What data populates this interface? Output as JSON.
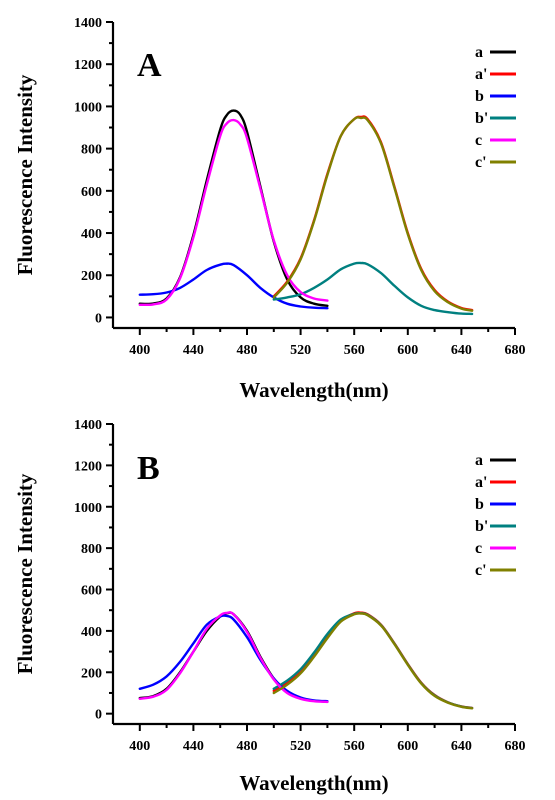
{
  "chart_data": [
    {
      "type": "line",
      "panel_label": "A",
      "xlabel": "Wavelength(nm)",
      "ylabel": "Fluorescence Intensity",
      "xlim": [
        380,
        680
      ],
      "ylim": [
        -50,
        1400
      ],
      "xticks": [
        400,
        440,
        480,
        520,
        560,
        600,
        640,
        680
      ],
      "yticks": [
        0,
        200,
        400,
        600,
        800,
        1000,
        1200,
        1400
      ],
      "legend": "top-right",
      "series": [
        {
          "name": "a",
          "color": "#000000",
          "x": [
            400,
            410,
            420,
            430,
            440,
            450,
            460,
            465,
            470,
            475,
            480,
            490,
            500,
            510,
            520,
            530,
            540
          ],
          "y": [
            65,
            66,
            90,
            190,
            390,
            650,
            890,
            960,
            980,
            960,
            880,
            620,
            360,
            180,
            95,
            65,
            55
          ]
        },
        {
          "name": "a'",
          "color": "#ff0000",
          "x": [
            500,
            510,
            520,
            530,
            540,
            550,
            560,
            565,
            570,
            580,
            590,
            600,
            610,
            620,
            630,
            640,
            648
          ],
          "y": [
            100,
            170,
            280,
            460,
            680,
            860,
            940,
            950,
            940,
            830,
            620,
            400,
            230,
            130,
            75,
            45,
            35
          ]
        },
        {
          "name": "b",
          "color": "#0000ff",
          "x": [
            400,
            410,
            420,
            430,
            440,
            450,
            460,
            465,
            470,
            480,
            490,
            500,
            510,
            520,
            530,
            540
          ],
          "y": [
            108,
            110,
            118,
            140,
            180,
            225,
            250,
            255,
            248,
            200,
            140,
            95,
            65,
            52,
            46,
            44
          ]
        },
        {
          "name": "b'",
          "color": "#008080",
          "x": [
            500,
            510,
            520,
            530,
            540,
            550,
            560,
            565,
            570,
            580,
            590,
            600,
            610,
            620,
            630,
            640,
            648
          ],
          "y": [
            85,
            95,
            110,
            140,
            180,
            228,
            255,
            258,
            252,
            210,
            150,
            95,
            55,
            35,
            25,
            18,
            17
          ]
        },
        {
          "name": "c",
          "color": "#ff00ff",
          "x": [
            400,
            410,
            420,
            430,
            440,
            450,
            460,
            465,
            470,
            475,
            480,
            490,
            500,
            510,
            520,
            530,
            540
          ],
          "y": [
            60,
            62,
            85,
            185,
            380,
            630,
            860,
            920,
            935,
            915,
            850,
            610,
            365,
            200,
            120,
            90,
            80
          ]
        },
        {
          "name": "c'",
          "color": "#808000",
          "x": [
            500,
            510,
            520,
            530,
            540,
            550,
            560,
            565,
            570,
            580,
            590,
            600,
            610,
            620,
            630,
            640,
            648
          ],
          "y": [
            95,
            165,
            275,
            455,
            675,
            860,
            940,
            945,
            935,
            825,
            615,
            395,
            225,
            125,
            72,
            42,
            32
          ]
        }
      ]
    },
    {
      "type": "line",
      "panel_label": "B",
      "xlabel": "Wavelength(nm)",
      "ylabel": "Fluorescence Intensity",
      "xlim": [
        380,
        680
      ],
      "ylim": [
        -50,
        1400
      ],
      "xticks": [
        400,
        440,
        480,
        520,
        560,
        600,
        640,
        680
      ],
      "yticks": [
        0,
        200,
        400,
        600,
        800,
        1000,
        1200,
        1400
      ],
      "legend": "top-right",
      "series": [
        {
          "name": "a",
          "color": "#000000",
          "x": [
            400,
            410,
            420,
            430,
            440,
            450,
            460,
            465,
            470,
            480,
            490,
            500,
            510,
            520,
            530,
            540
          ],
          "y": [
            75,
            85,
            120,
            200,
            300,
            400,
            470,
            485,
            480,
            400,
            275,
            170,
            105,
            75,
            62,
            58
          ]
        },
        {
          "name": "a'",
          "color": "#ff0000",
          "x": [
            500,
            510,
            520,
            530,
            540,
            550,
            560,
            565,
            570,
            580,
            590,
            600,
            610,
            620,
            630,
            640,
            648
          ],
          "y": [
            110,
            150,
            200,
            280,
            370,
            450,
            485,
            488,
            480,
            430,
            340,
            240,
            150,
            90,
            55,
            35,
            28
          ]
        },
        {
          "name": "b",
          "color": "#0000ff",
          "x": [
            400,
            410,
            420,
            430,
            440,
            450,
            460,
            465,
            470,
            480,
            490,
            500,
            510,
            520,
            530,
            540
          ],
          "y": [
            120,
            140,
            180,
            250,
            340,
            430,
            470,
            472,
            455,
            370,
            260,
            170,
            110,
            78,
            64,
            60
          ]
        },
        {
          "name": "b'",
          "color": "#008080",
          "x": [
            500,
            510,
            520,
            530,
            540,
            550,
            560,
            565,
            570,
            580,
            590,
            600,
            610,
            620,
            630,
            640,
            648
          ],
          "y": [
            120,
            160,
            215,
            295,
            385,
            455,
            482,
            485,
            478,
            428,
            338,
            238,
            148,
            88,
            54,
            34,
            27
          ]
        },
        {
          "name": "c",
          "color": "#ff00ff",
          "x": [
            400,
            410,
            420,
            430,
            440,
            450,
            460,
            465,
            470,
            480,
            490,
            500,
            510,
            520,
            530,
            540
          ],
          "y": [
            72,
            82,
            115,
            195,
            300,
            410,
            475,
            487,
            480,
            395,
            270,
            165,
            100,
            72,
            60,
            57
          ]
        },
        {
          "name": "c'",
          "color": "#808000",
          "x": [
            500,
            510,
            520,
            530,
            540,
            550,
            560,
            565,
            570,
            580,
            590,
            600,
            610,
            620,
            630,
            640,
            648
          ],
          "y": [
            100,
            140,
            195,
            275,
            365,
            445,
            480,
            484,
            476,
            426,
            336,
            236,
            146,
            86,
            53,
            33,
            26
          ]
        }
      ]
    }
  ]
}
